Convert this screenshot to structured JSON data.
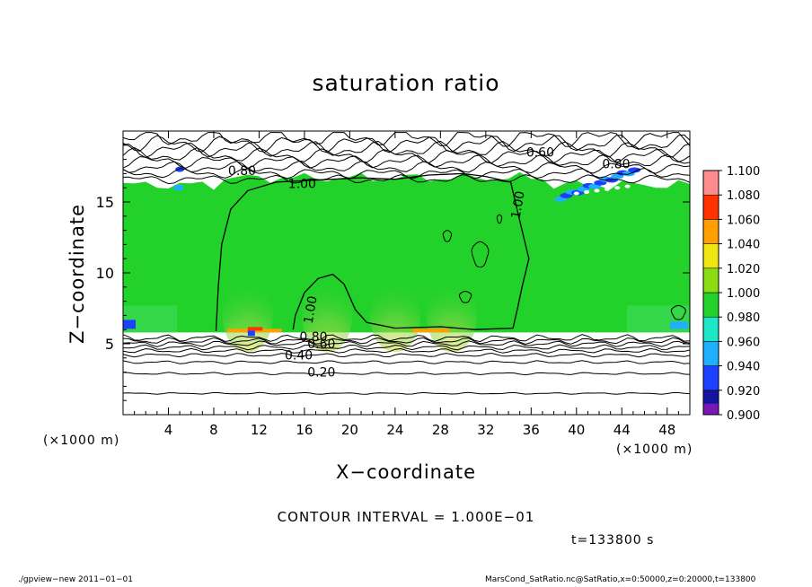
{
  "chart_data": {
    "type": "heatmap",
    "title": "saturation ratio",
    "xlabel": "X−coordinate",
    "ylabel": "Z−coordinate",
    "x_unit_left": "(×1000 m)",
    "x_unit_right": "(×1000 m)",
    "xlim": [
      0,
      50
    ],
    "ylim": [
      0,
      20
    ],
    "xticks": [
      4,
      8,
      12,
      16,
      20,
      24,
      28,
      32,
      36,
      40,
      44,
      48
    ],
    "yticks": [
      5,
      10,
      15
    ],
    "colorbar": {
      "levels": [
        0.9,
        0.92,
        0.94,
        0.96,
        0.98,
        1.0,
        1.02,
        1.04,
        1.06,
        1.08,
        1.1
      ],
      "labels": [
        "0.900",
        "0.920",
        "0.940",
        "0.960",
        "0.980",
        "1.000",
        "1.020",
        "1.040",
        "1.060",
        "1.080",
        "1.100"
      ],
      "colors": [
        "#7a16b6",
        "#1414a0",
        "#1c40ff",
        "#1eb0ff",
        "#1ee6c8",
        "#22d22a",
        "#8cdc14",
        "#f0e614",
        "#ffa000",
        "#ff3200",
        "#ff8c8c",
        "#ffc8c8"
      ]
    },
    "saturated_layer": {
      "z_bottom": 5.8,
      "z_top": 16.2,
      "value": 1.0
    },
    "contour_labels": [
      {
        "text": "0.20",
        "x": 17.5,
        "z": 3.0
      },
      {
        "text": "0.40",
        "x": 15.5,
        "z": 4.2
      },
      {
        "text": "0.60",
        "x": 17.5,
        "z": 5.0
      },
      {
        "text": "0.80",
        "x": 16.8,
        "z": 5.5
      },
      {
        "text": "1.00",
        "x": 16.5,
        "z": 7.4
      },
      {
        "text": "1.00",
        "x": 15.8,
        "z": 16.3
      },
      {
        "text": "0.80",
        "x": 10.5,
        "z": 17.2
      },
      {
        "text": "0.60",
        "x": 36.8,
        "z": 18.5
      },
      {
        "text": "0.80",
        "x": 43.5,
        "z": 17.7
      },
      {
        "text": "1.00",
        "x": 34.8,
        "z": 14.8
      }
    ],
    "grid": false
  },
  "contour_interval": "CONTOUR INTERVAL = 1.000E−01",
  "time_label": "t=133800 s",
  "footer": {
    "left": "./gpview−new   2011−01−01",
    "right": "MarsCond_SatRatio.nc@SatRatio,x=0:50000,z=0:20000,t=133800"
  }
}
